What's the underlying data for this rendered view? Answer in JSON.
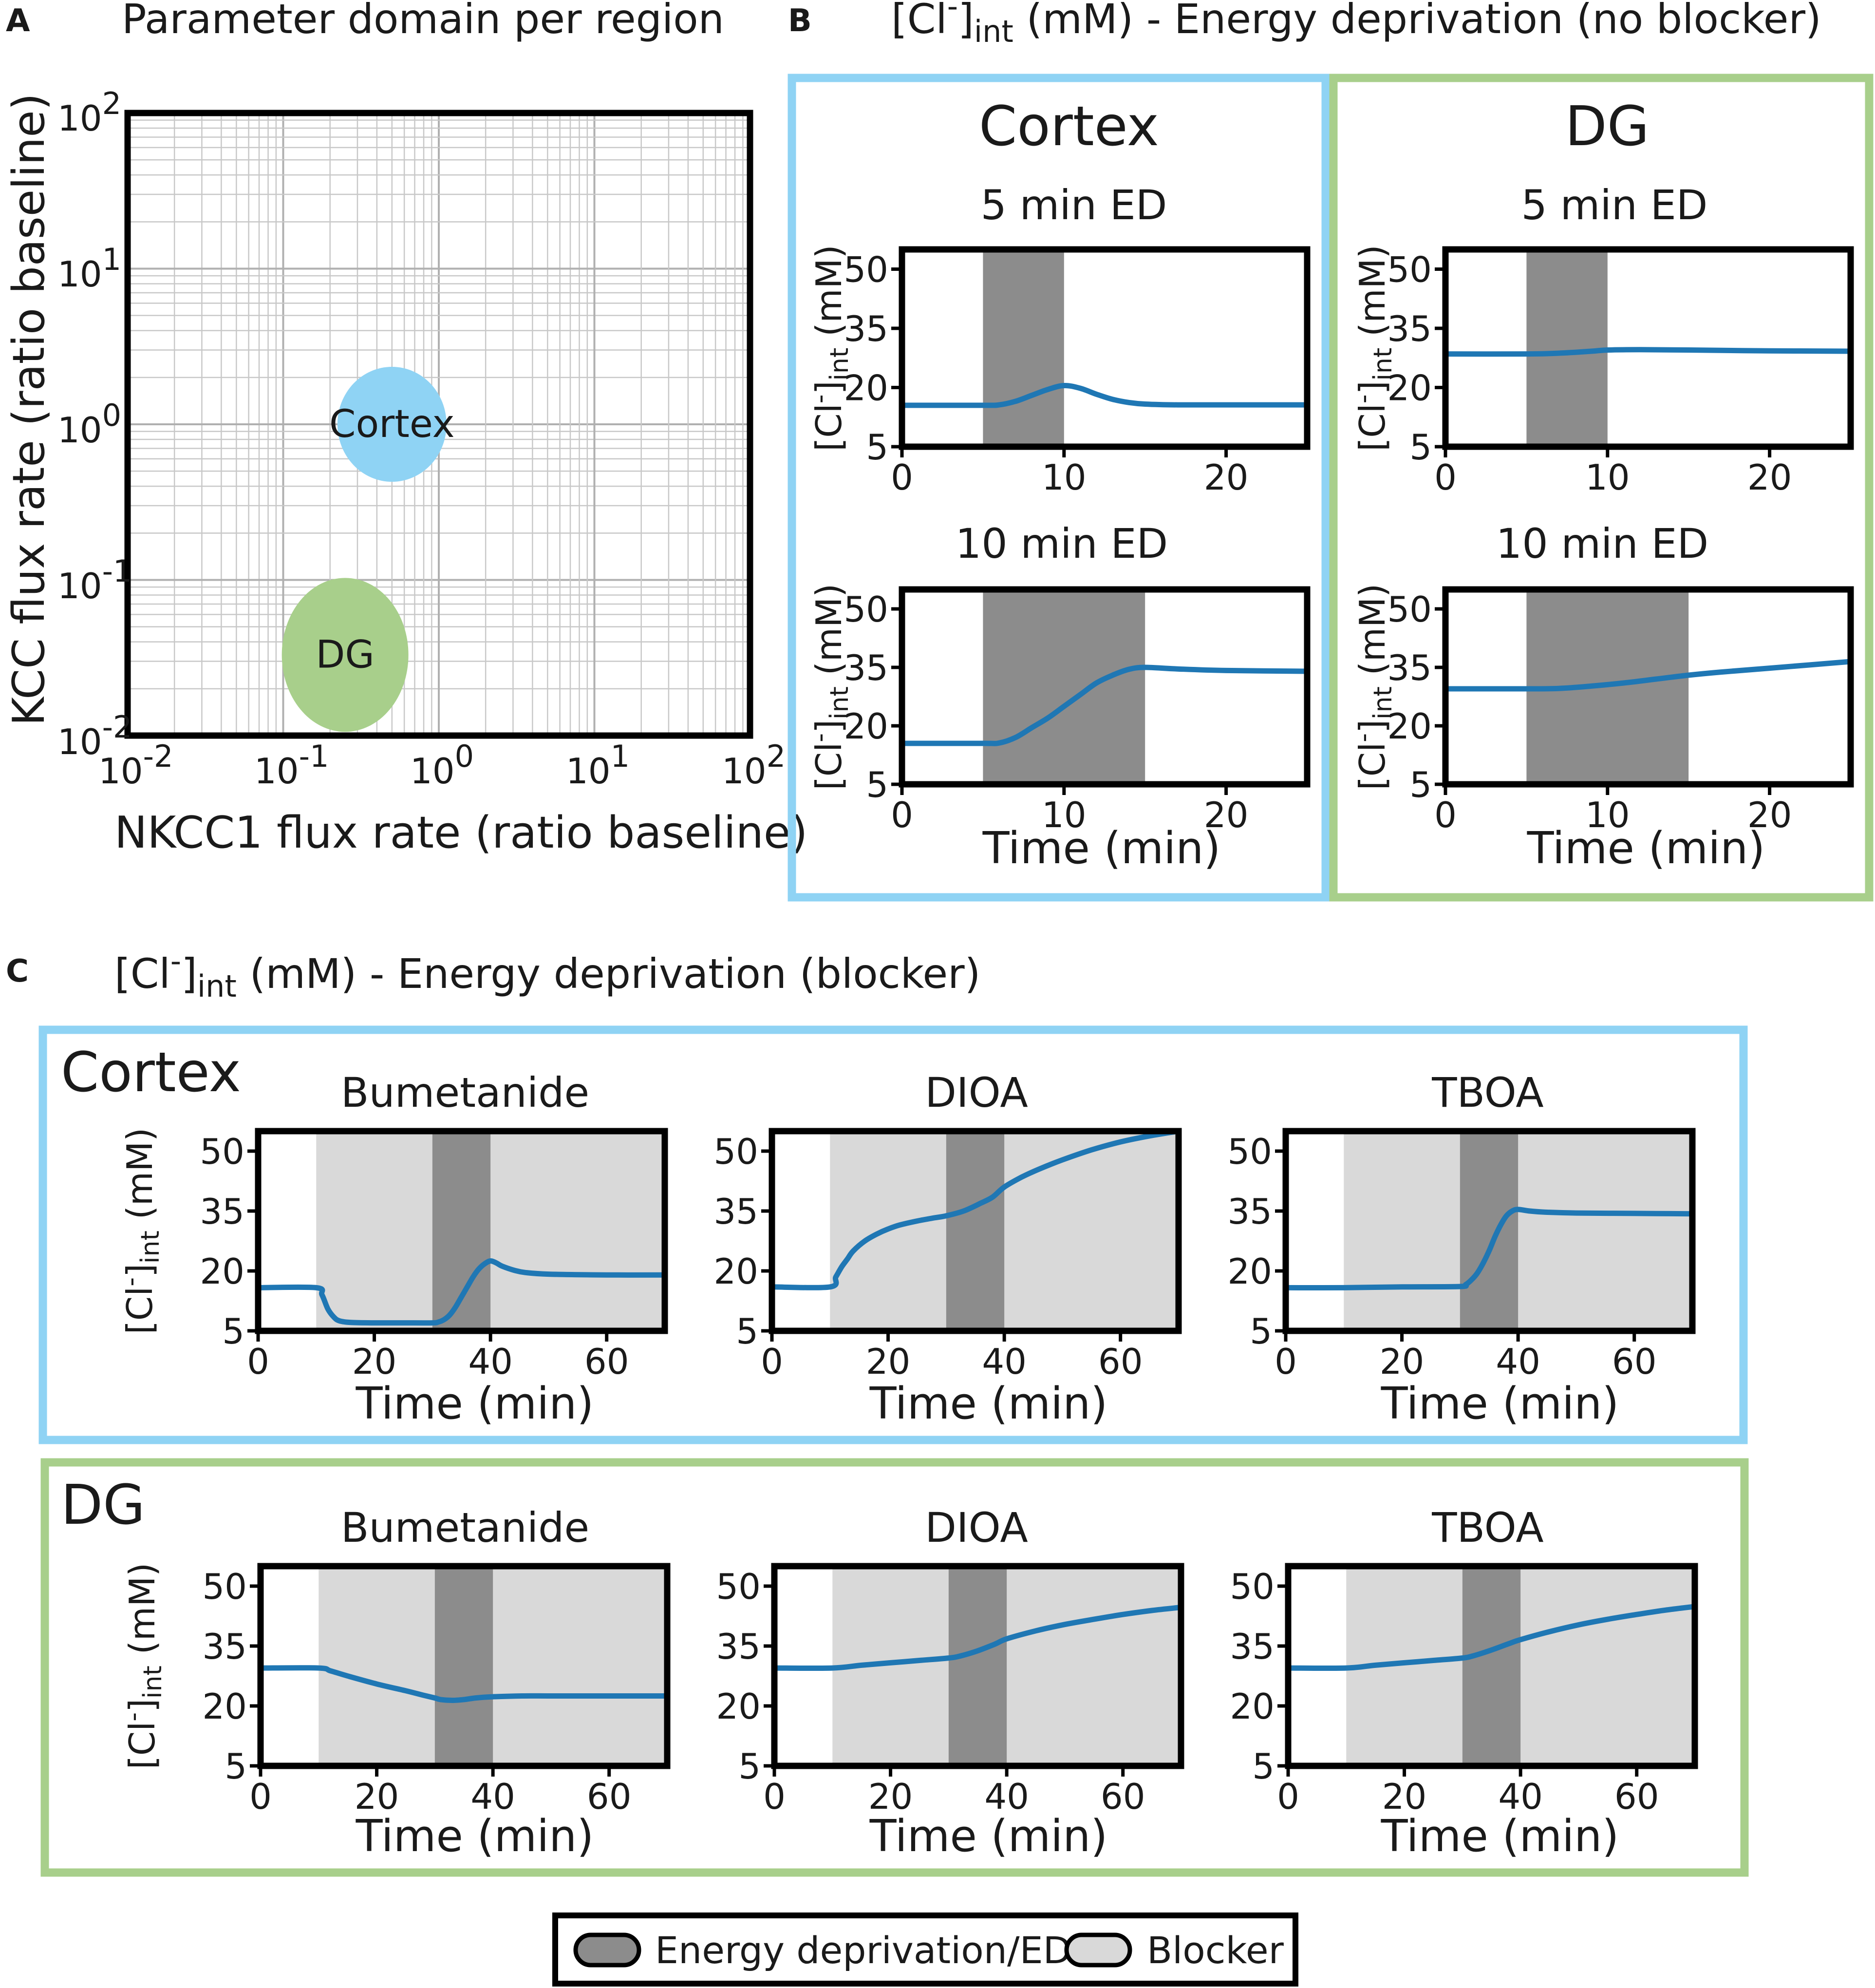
{
  "colors": {
    "cortex": "#8fd3f4",
    "dg": "#a8cf8b",
    "line": "#1f77b4",
    "ed_fill": "#8c8c8c",
    "blocker_fill": "#d9d9d9",
    "frame": "#000000",
    "grid": "#c8c8c8"
  },
  "panel_a": {
    "letter": "A",
    "title": "Parameter domain per region",
    "xlabel": "NKCC1 flux rate (ratio baseline)",
    "ylabel": "KCC flux rate (ratio baseline)",
    "tick_base": "10",
    "tick_exponents": [
      "-2",
      "-1",
      "0",
      "1",
      "2"
    ],
    "regions": [
      {
        "name": "Cortex",
        "nkcc1": 0.5,
        "kcc": 1.0,
        "color": "#8fd3f4"
      },
      {
        "name": "DG",
        "nkcc1": 0.25,
        "kcc": 0.033,
        "color": "#a8cf8b"
      }
    ]
  },
  "panel_b": {
    "letter": "B",
    "title_prefix": "[Cl",
    "title_sup": "-",
    "title_bracket": "]",
    "title_sub": "int",
    "title_suffix": " (mM) - Energy deprivation (no blocker)",
    "regions": [
      {
        "name": "Cortex",
        "color": "#8fd3f4"
      },
      {
        "name": "DG",
        "color": "#a8cf8b"
      }
    ]
  },
  "panel_c": {
    "letter": "C",
    "title_prefix": "[Cl",
    "title_sup": "-",
    "title_bracket": "]",
    "title_sub": "int",
    "title_suffix": " (mM) - Energy deprivation (blocker)",
    "regions": [
      {
        "name": "Cortex",
        "color": "#8fd3f4"
      },
      {
        "name": "DG",
        "color": "#a8cf8b"
      }
    ]
  },
  "axis_text": {
    "time_label": "Time (min)",
    "ylabel_prefix": "[Cl",
    "ylabel_sup": "-",
    "ylabel_bracket": "]",
    "ylabel_sub": "int",
    "ylabel_suffix": " (mM)"
  },
  "legend": {
    "ed_label": "Energy deprivation/ED",
    "blocker_label": "Blocker"
  },
  "chart_data": [
    {
      "type": "scatter",
      "title": "Parameter domain per region",
      "xlabel": "NKCC1 flux rate (ratio baseline)",
      "ylabel": "KCC flux rate (ratio baseline)",
      "xscale": "log",
      "yscale": "log",
      "xlim": [
        0.01,
        100
      ],
      "ylim": [
        0.01,
        100
      ],
      "grid": true,
      "points": [
        {
          "label": "Cortex",
          "x": 0.5,
          "y": 1.0
        },
        {
          "label": "DG",
          "x": 0.25,
          "y": 0.033
        }
      ]
    },
    {
      "type": "line",
      "panel": "B",
      "region": "Cortex",
      "title": "5 min ED",
      "xlim": [
        0,
        25
      ],
      "ylim": [
        5,
        55
      ],
      "xticks": [
        "0",
        "10",
        "20"
      ],
      "yticks": [
        "5",
        "20",
        "35",
        "50"
      ],
      "ed": [
        5,
        10
      ],
      "x": [
        0,
        5,
        6,
        7,
        8,
        9,
        10,
        11,
        12,
        13,
        14,
        15,
        17,
        20,
        25
      ],
      "y": [
        15.5,
        15.5,
        15.6,
        16.5,
        18,
        19.5,
        20.5,
        19.8,
        18.3,
        17,
        16.2,
        15.8,
        15.6,
        15.6,
        15.6
      ]
    },
    {
      "type": "line",
      "panel": "B",
      "region": "Cortex",
      "title": "10 min ED",
      "xlim": [
        0,
        25
      ],
      "ylim": [
        5,
        55
      ],
      "xticks": [
        "0",
        "10",
        "20"
      ],
      "yticks": [
        "5",
        "20",
        "35",
        "50"
      ],
      "ed": [
        5,
        15
      ],
      "x": [
        0,
        5,
        6,
        7,
        8,
        9,
        10,
        11,
        12,
        13,
        14,
        15,
        17,
        20,
        25
      ],
      "y": [
        15.5,
        15.5,
        15.6,
        17,
        19.5,
        22,
        25,
        28,
        31,
        33,
        34.5,
        35,
        34.6,
        34.2,
        34
      ]
    },
    {
      "type": "line",
      "panel": "B",
      "region": "DG",
      "title": "5 min ED",
      "xlim": [
        0,
        25
      ],
      "ylim": [
        5,
        55
      ],
      "xticks": [
        "0",
        "10",
        "20"
      ],
      "yticks": [
        "5",
        "20",
        "35",
        "50"
      ],
      "ed": [
        5,
        10
      ],
      "x": [
        0,
        5,
        7,
        9,
        10,
        12,
        15,
        20,
        25
      ],
      "y": [
        28.5,
        28.5,
        28.7,
        29.2,
        29.5,
        29.6,
        29.5,
        29.3,
        29.2
      ]
    },
    {
      "type": "line",
      "panel": "B",
      "region": "DG",
      "title": "10 min ED",
      "xlim": [
        0,
        25
      ],
      "ylim": [
        5,
        55
      ],
      "xticks": [
        "0",
        "10",
        "20"
      ],
      "yticks": [
        "5",
        "20",
        "35",
        "50"
      ],
      "ed": [
        5,
        15
      ],
      "x": [
        0,
        5,
        7,
        9,
        11,
        13,
        15,
        17,
        20,
        25
      ],
      "y": [
        29.5,
        29.5,
        29.6,
        30.2,
        31,
        32,
        33,
        33.8,
        34.8,
        36.5
      ]
    },
    {
      "type": "line",
      "panel": "C",
      "region": "Cortex",
      "title": "Bumetanide",
      "xlabel": "Time (min)",
      "xlim": [
        0,
        70
      ],
      "ylim": [
        5,
        55
      ],
      "xticks": [
        "0",
        "20",
        "40",
        "60"
      ],
      "yticks": [
        "5",
        "20",
        "35",
        "50"
      ],
      "blocker": [
        10,
        70
      ],
      "ed": [
        30,
        40
      ],
      "x": [
        0,
        10,
        11,
        12,
        13,
        14,
        16,
        20,
        25,
        30,
        31,
        32,
        33,
        34,
        35,
        36,
        37,
        38,
        39,
        40,
        41,
        42,
        44,
        46,
        50,
        60,
        70
      ],
      "y": [
        15.8,
        15.8,
        14,
        10.5,
        8.5,
        7.5,
        7.1,
        7,
        7,
        7,
        7.2,
        7.8,
        9,
        11,
        13.5,
        16,
        18.5,
        20.5,
        21.8,
        22.5,
        22,
        21.2,
        20.2,
        19.6,
        19.2,
        19,
        19
      ]
    },
    {
      "type": "line",
      "panel": "C",
      "region": "Cortex",
      "title": "DIOA",
      "xlabel": "Time (min)",
      "xlim": [
        0,
        70
      ],
      "ylim": [
        5,
        55
      ],
      "xticks": [
        "0",
        "20",
        "40",
        "60"
      ],
      "yticks": [
        "5",
        "20",
        "35",
        "50"
      ],
      "blocker": [
        10,
        70
      ],
      "ed": [
        30,
        40
      ],
      "x": [
        0,
        10,
        11,
        12,
        13,
        14,
        16,
        18,
        20,
        22,
        25,
        28,
        30,
        33,
        36,
        38,
        40,
        43,
        46,
        50,
        55,
        60,
        65,
        70
      ],
      "y": [
        16,
        16,
        18.5,
        21,
        23,
        25,
        27.5,
        29.2,
        30.5,
        31.5,
        32.5,
        33.3,
        33.8,
        35,
        37,
        38.5,
        41,
        43.5,
        45.5,
        47.8,
        50.3,
        52.3,
        53.8,
        55
      ]
    },
    {
      "type": "line",
      "panel": "C",
      "region": "Cortex",
      "title": "TBOA",
      "xlabel": "Time (min)",
      "xlim": [
        0,
        70
      ],
      "ylim": [
        5,
        55
      ],
      "xticks": [
        "0",
        "20",
        "40",
        "60"
      ],
      "yticks": [
        "5",
        "20",
        "35",
        "50"
      ],
      "blocker": [
        10,
        70
      ],
      "ed": [
        30,
        40
      ],
      "x": [
        0,
        10,
        20,
        30,
        31,
        32,
        33,
        34,
        35,
        36,
        37,
        38,
        39,
        40,
        42,
        45,
        50,
        60,
        70
      ],
      "y": [
        15.8,
        15.8,
        16,
        16.1,
        16.6,
        17.8,
        19.5,
        22,
        25,
        28.5,
        31.5,
        33.8,
        35,
        35.4,
        35,
        34.7,
        34.5,
        34.4,
        34.3
      ]
    },
    {
      "type": "line",
      "panel": "C",
      "region": "DG",
      "title": "Bumetanide",
      "xlabel": "Time (min)",
      "xlim": [
        0,
        70
      ],
      "ylim": [
        5,
        55
      ],
      "xticks": [
        "0",
        "20",
        "40",
        "60"
      ],
      "yticks": [
        "5",
        "20",
        "35",
        "50"
      ],
      "blocker": [
        10,
        70
      ],
      "ed": [
        30,
        40
      ],
      "x": [
        0,
        10,
        12,
        15,
        20,
        25,
        28,
        30,
        31,
        33,
        35,
        37,
        40,
        45,
        50,
        60,
        70
      ],
      "y": [
        29.5,
        29.5,
        28.8,
        27.5,
        25.5,
        23.8,
        22.7,
        22,
        21.6,
        21.4,
        21.6,
        22,
        22.3,
        22.5,
        22.5,
        22.5,
        22.5
      ]
    },
    {
      "type": "line",
      "panel": "C",
      "region": "DG",
      "title": "DIOA",
      "xlabel": "Time (min)",
      "xlim": [
        0,
        70
      ],
      "ylim": [
        5,
        55
      ],
      "xticks": [
        "0",
        "20",
        "40",
        "60"
      ],
      "yticks": [
        "5",
        "20",
        "35",
        "50"
      ],
      "blocker": [
        10,
        70
      ],
      "ed": [
        30,
        40
      ],
      "x": [
        0,
        10,
        15,
        20,
        25,
        30,
        32,
        35,
        38,
        40,
        45,
        50,
        55,
        60,
        65,
        70
      ],
      "y": [
        29.5,
        29.5,
        30.2,
        30.8,
        31.4,
        32,
        32.5,
        33.8,
        35.5,
        36.8,
        38.8,
        40.4,
        41.7,
        42.9,
        43.9,
        44.7
      ]
    },
    {
      "type": "line",
      "panel": "C",
      "region": "DG",
      "title": "TBOA",
      "xlabel": "Time (min)",
      "xlim": [
        0,
        70
      ],
      "ylim": [
        5,
        55
      ],
      "xticks": [
        "0",
        "20",
        "40",
        "60"
      ],
      "yticks": [
        "5",
        "20",
        "35",
        "50"
      ],
      "blocker": [
        10,
        70
      ],
      "ed": [
        30,
        40
      ],
      "x": [
        0,
        10,
        15,
        20,
        25,
        30,
        32,
        35,
        38,
        40,
        45,
        50,
        55,
        60,
        65,
        70
      ],
      "y": [
        29.5,
        29.5,
        30.2,
        30.8,
        31.4,
        32,
        32.6,
        34,
        35.6,
        36.6,
        38.6,
        40.3,
        41.7,
        42.9,
        44,
        44.9
      ]
    }
  ]
}
